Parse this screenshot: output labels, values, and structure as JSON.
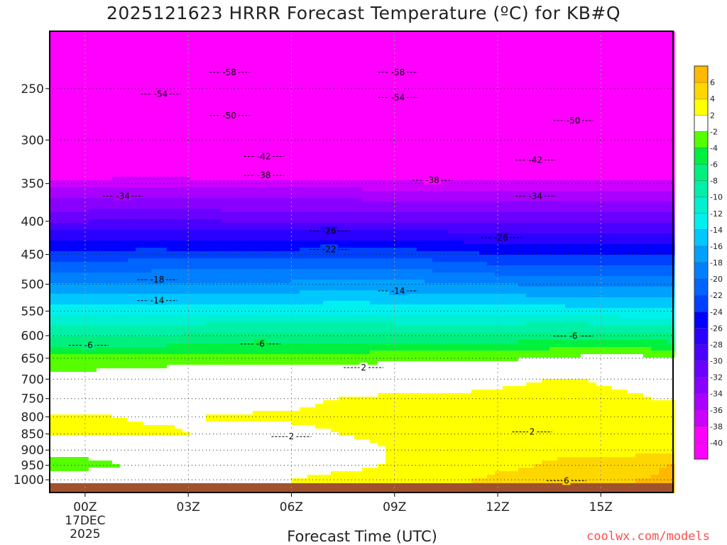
{
  "chart_data": {
    "type": "heatmap",
    "title": "2025121623 HRRR Forecast Temperature (ºC) for KB#Q",
    "xlabel": "Forecast Time (UTC)",
    "ylabel": "",
    "credit": "coolwx.com/models",
    "x_ticks": [
      {
        "hour": 0,
        "label": "00Z",
        "sub": [
          "17DEC",
          "2025"
        ]
      },
      {
        "hour": 3,
        "label": "03Z"
      },
      {
        "hour": 6,
        "label": "06Z"
      },
      {
        "hour": 9,
        "label": "09Z"
      },
      {
        "hour": 12,
        "label": "12Z"
      },
      {
        "hour": 15,
        "label": "15Z"
      }
    ],
    "xlim": [
      -1.03,
      17.1
    ],
    "y_ticks": [
      250,
      300,
      350,
      400,
      450,
      500,
      550,
      600,
      650,
      700,
      750,
      800,
      850,
      900,
      950,
      1000
    ],
    "ylim_hpa": [
      204,
      1046
    ],
    "y_scale": "log",
    "ground_below_hpa": 1012,
    "times": [
      -1,
      0,
      2,
      4,
      6,
      8,
      10,
      12,
      14,
      16,
      17.1
    ],
    "levels": [
      204,
      250,
      300,
      350,
      400,
      450,
      500,
      550,
      600,
      650,
      700,
      750,
      800,
      850,
      900,
      950,
      1000,
      1046
    ],
    "temperature": [
      [
        -62,
        -62,
        -62,
        -62,
        -62,
        -62,
        -62,
        -62,
        -62,
        -62,
        -62
      ],
      [
        -56,
        -56,
        -56,
        -56,
        -56,
        -56,
        -56,
        -56,
        -56,
        -56,
        -56
      ],
      [
        -47,
        -47,
        -47,
        -47.5,
        -47,
        -47,
        -47,
        -47.5,
        -47.5,
        -47,
        -47
      ],
      [
        -37,
        -37,
        -36.5,
        -37,
        -37,
        -37,
        -37.5,
        -37.5,
        -37,
        -37,
        -37
      ],
      [
        -30,
        -30,
        -29.5,
        -30,
        -30,
        -30,
        -30,
        -30.5,
        -30.5,
        -30.5,
        -30.5
      ],
      [
        -23,
        -23,
        -23,
        -23,
        -23,
        -22.5,
        -23,
        -24,
        -24,
        -24,
        -24
      ],
      [
        -18,
        -18,
        -17.5,
        -17.5,
        -17.5,
        -17,
        -17.5,
        -18,
        -18.5,
        -18.5,
        -18.5
      ],
      [
        -13,
        -13,
        -13,
        -12.5,
        -12.5,
        -12.5,
        -13,
        -13,
        -13,
        -13.5,
        -13.5
      ],
      [
        -8,
        -8,
        -8,
        -7.5,
        -7.5,
        -7.5,
        -7.5,
        -7.5,
        -7,
        -7.5,
        -7.5
      ],
      [
        -3.5,
        -3.5,
        -3.5,
        -3,
        -3,
        -2.8,
        -2.5,
        -2.5,
        -1.5,
        -1,
        -2.2
      ],
      [
        -1,
        -1,
        0,
        0.5,
        0.5,
        0.5,
        0.5,
        1.5,
        2.2,
        1.5,
        1.5
      ],
      [
        0,
        0,
        1,
        1,
        1.5,
        2.3,
        2.5,
        2.5,
        2.6,
        2.2,
        1.8
      ],
      [
        2.5,
        2.5,
        1.5,
        2.2,
        2.3,
        2.5,
        3,
        3,
        2,
        3,
        3
      ],
      [
        2.5,
        2.5,
        2.5,
        1.5,
        1.5,
        2.2,
        3,
        2.3,
        2.5,
        3,
        3
      ],
      [
        -1,
        -1,
        0,
        1,
        1.5,
        1.5,
        2.8,
        3,
        3.5,
        3.5,
        3.5
      ],
      [
        -3,
        -3,
        -1,
        0.5,
        1.5,
        1.8,
        2.5,
        3.5,
        4.5,
        5,
        6.2
      ],
      [
        0,
        0,
        0,
        1,
        2,
        2.5,
        3,
        4.5,
        5,
        6,
        6.5
      ],
      [
        1,
        1,
        1,
        1.5,
        2,
        2.5,
        3,
        4.5,
        5,
        6,
        6.5
      ]
    ],
    "color_bins": [
      {
        "min": 6,
        "max": 99,
        "color": "#ffb900"
      },
      {
        "min": 4,
        "max": 6,
        "color": "#ffd700"
      },
      {
        "min": 2,
        "max": 4,
        "color": "#ffff00"
      },
      {
        "min": -2,
        "max": 2,
        "color": "#ffffff"
      },
      {
        "min": -4,
        "max": -2,
        "color": "#55ff00"
      },
      {
        "min": -6,
        "max": -4,
        "color": "#00f040"
      },
      {
        "min": -8,
        "max": -6,
        "color": "#00f080"
      },
      {
        "min": -10,
        "max": -8,
        "color": "#00f0a8"
      },
      {
        "min": -12,
        "max": -10,
        "color": "#00f0d0"
      },
      {
        "min": -14,
        "max": -12,
        "color": "#00f0f0"
      },
      {
        "min": -16,
        "max": -14,
        "color": "#00c8ff"
      },
      {
        "min": -18,
        "max": -16,
        "color": "#00a0ff"
      },
      {
        "min": -20,
        "max": -18,
        "color": "#0080ff"
      },
      {
        "min": -22,
        "max": -20,
        "color": "#0064ff"
      },
      {
        "min": -24,
        "max": -22,
        "color": "#0040ff"
      },
      {
        "min": -26,
        "max": -24,
        "color": "#0000ff"
      },
      {
        "min": -28,
        "max": -26,
        "color": "#2a00ff"
      },
      {
        "min": -30,
        "max": -28,
        "color": "#4a00ff"
      },
      {
        "min": -32,
        "max": -30,
        "color": "#6a00ff"
      },
      {
        "min": -34,
        "max": -32,
        "color": "#8a00ff"
      },
      {
        "min": -36,
        "max": -34,
        "color": "#aa00ff"
      },
      {
        "min": -38,
        "max": -36,
        "color": "#cc00ff"
      },
      {
        "min": -40,
        "max": -38,
        "color": "#ff00ff"
      },
      {
        "min": -99,
        "max": -40,
        "color": "#ff00ff"
      }
    ],
    "colorbar_labels": [
      "6",
      "4",
      "2",
      "-2",
      "-4",
      "-6",
      "-8",
      "-10",
      "-12",
      "-14",
      "-16",
      "-18",
      "-20",
      "-22",
      "-24",
      "-26",
      "-28",
      "-30",
      "-32",
      "-34",
      "-36",
      "-38",
      "-40"
    ],
    "ground_color": "#a0522d",
    "contour_labels": [
      {
        "text": "-58",
        "hour": 4.2,
        "hpa": 236
      },
      {
        "text": "-58",
        "hour": 9.1,
        "hpa": 236
      },
      {
        "text": "-54",
        "hour": 2.2,
        "hpa": 255
      },
      {
        "text": "-54",
        "hour": 9.1,
        "hpa": 258
      },
      {
        "text": "-50",
        "hour": 4.2,
        "hpa": 275
      },
      {
        "text": "-50",
        "hour": 14.2,
        "hpa": 280
      },
      {
        "text": "-42",
        "hour": 5.2,
        "hpa": 318
      },
      {
        "text": "-42",
        "hour": 13.1,
        "hpa": 322
      },
      {
        "text": "-38",
        "hour": 5.2,
        "hpa": 340
      },
      {
        "text": "-38",
        "hour": 10.1,
        "hpa": 346
      },
      {
        "text": "-34",
        "hour": 1.1,
        "hpa": 366
      },
      {
        "text": "-34",
        "hour": 13.1,
        "hpa": 366
      },
      {
        "text": "-26",
        "hour": 7.1,
        "hpa": 414
      },
      {
        "text": "-26",
        "hour": 12.1,
        "hpa": 424
      },
      {
        "text": "-22",
        "hour": 7.1,
        "hpa": 442
      },
      {
        "text": "-18",
        "hour": 2.1,
        "hpa": 492
      },
      {
        "text": "-14",
        "hour": 2.1,
        "hpa": 530
      },
      {
        "text": "-14",
        "hour": 9.1,
        "hpa": 512
      },
      {
        "text": "-6",
        "hour": 0.1,
        "hpa": 621
      },
      {
        "text": "-6",
        "hour": 5.1,
        "hpa": 618
      },
      {
        "text": "-6",
        "hour": 14.2,
        "hpa": 601
      },
      {
        "text": "2",
        "hour": 8.1,
        "hpa": 672
      },
      {
        "text": "2",
        "hour": 6.0,
        "hpa": 858
      },
      {
        "text": "2",
        "hour": 13.0,
        "hpa": 844
      },
      {
        "text": "6",
        "hour": 14.0,
        "hpa": 1003
      }
    ]
  }
}
